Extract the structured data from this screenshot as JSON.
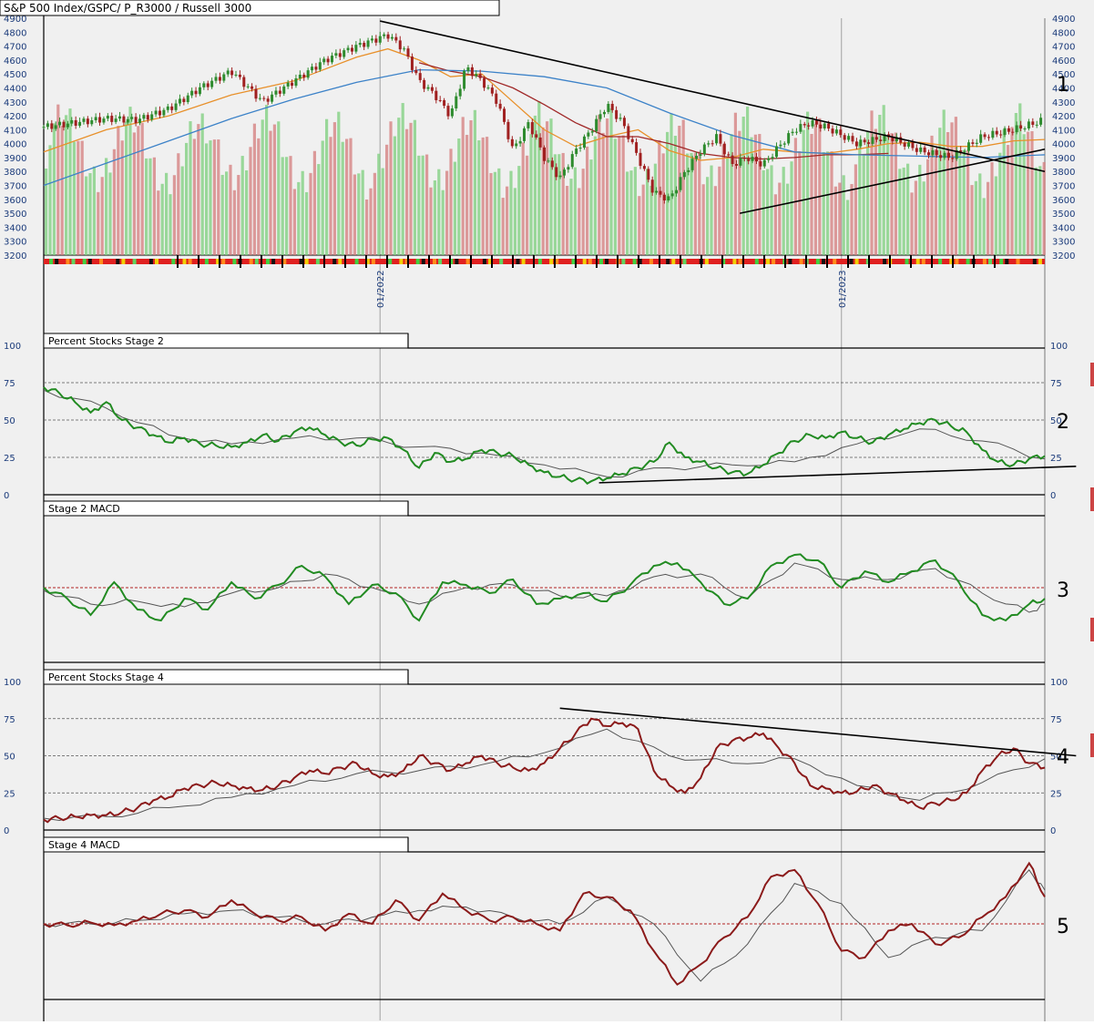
{
  "chart_data": [
    {
      "type": "candlestick",
      "title": "S&P 500 Index/GSPC/ P_R3000 / Russell 3000",
      "panel_number": "1",
      "ylim": [
        3200,
        4900
      ],
      "yticks": [
        3200,
        3300,
        3400,
        3500,
        3600,
        3700,
        3800,
        3900,
        4000,
        4100,
        4200,
        4300,
        4400,
        4500,
        4600,
        4700,
        4800,
        4900
      ],
      "date_labels": [
        "01/2022",
        "01/2023"
      ],
      "x_range_weeks": [
        0,
        128
      ],
      "series": [
        {
          "name": "",
          "kind": "close",
          "color": "#2e8b2e",
          "x": [
            0,
            4,
            8,
            12,
            16,
            20,
            24,
            28,
            32,
            36,
            40,
            44,
            46,
            48,
            50,
            52,
            54,
            56,
            58,
            60,
            62,
            64,
            66,
            68,
            70,
            72,
            74,
            76,
            78,
            80,
            82,
            84,
            86,
            88,
            90,
            92,
            94,
            96,
            98,
            100,
            104,
            108,
            112,
            116,
            120,
            124,
            128
          ],
          "values": [
            4120,
            4150,
            4180,
            4170,
            4250,
            4400,
            4520,
            4300,
            4450,
            4600,
            4700,
            4780,
            4680,
            4450,
            4350,
            4200,
            4550,
            4450,
            4300,
            3950,
            4150,
            3900,
            3750,
            3950,
            4100,
            4280,
            4150,
            3900,
            3650,
            3600,
            3800,
            3950,
            4050,
            3850,
            3900,
            3850,
            3980,
            4100,
            4150,
            4120,
            4000,
            4050,
            3950,
            3900,
            4050,
            4100,
            4170
          ]
        },
        {
          "name": "",
          "kind": "ma50",
          "color": "#e8902a",
          "x": [
            0,
            8,
            16,
            24,
            32,
            40,
            44,
            48,
            52,
            56,
            60,
            64,
            68,
            72,
            76,
            80,
            84,
            88,
            92,
            96,
            100,
            104,
            108,
            112,
            116,
            120,
            124,
            128
          ],
          "values": [
            3940,
            4100,
            4200,
            4350,
            4450,
            4620,
            4680,
            4600,
            4480,
            4500,
            4300,
            4100,
            3980,
            4050,
            4100,
            3950,
            3880,
            3900,
            3960,
            3940,
            3930,
            3960,
            4000,
            4010,
            3980,
            3980,
            4020,
            4030
          ]
        },
        {
          "name": "",
          "kind": "ma150",
          "color": "#a02828",
          "x": [
            48,
            52,
            56,
            60,
            64,
            68,
            72,
            76,
            80,
            84,
            88,
            92,
            96,
            100,
            104,
            108
          ],
          "values": [
            4580,
            4520,
            4480,
            4400,
            4280,
            4150,
            4050,
            4050,
            4000,
            3930,
            3900,
            3890,
            3900,
            3920,
            3920,
            3930
          ]
        },
        {
          "name": "",
          "kind": "ma200",
          "color": "#3c82c8",
          "x": [
            0,
            8,
            16,
            24,
            32,
            40,
            48,
            56,
            64,
            72,
            80,
            88,
            96,
            104,
            112,
            120,
            128
          ],
          "values": [
            3700,
            3860,
            4020,
            4180,
            4320,
            4440,
            4530,
            4520,
            4480,
            4400,
            4220,
            4060,
            3940,
            3920,
            3910,
            3900,
            3920
          ]
        }
      ],
      "trendlines": [
        {
          "x1": 43,
          "y1": 4880,
          "x2": 128,
          "y2": 3800
        },
        {
          "x1": 89,
          "y1": 3500,
          "x2": 128,
          "y2": 3960
        }
      ],
      "volume_note": "volume bars (green/red) overlaid in lower area",
      "indicator_strip_colors": [
        "#e02020",
        "#40d040",
        "#101010",
        "#f0d000",
        "#ff8c1a",
        "#5fd35f"
      ]
    },
    {
      "type": "line",
      "title": "Percent Stocks Stage 2",
      "panel_number": "2",
      "ylim": [
        0,
        100
      ],
      "yticks": [
        0,
        25,
        50,
        75,
        100
      ],
      "x_range_weeks": [
        0,
        128
      ],
      "series": [
        {
          "name": "",
          "color": "#228b22",
          "x": [
            0,
            2,
            4,
            6,
            8,
            10,
            12,
            14,
            16,
            18,
            20,
            22,
            24,
            26,
            28,
            30,
            32,
            34,
            36,
            38,
            40,
            42,
            44,
            46,
            48,
            50,
            52,
            54,
            56,
            58,
            60,
            62,
            64,
            66,
            68,
            70,
            72,
            74,
            76,
            78,
            80,
            82,
            84,
            86,
            88,
            90,
            92,
            94,
            96,
            98,
            100,
            102,
            104,
            106,
            108,
            110,
            112,
            114,
            116,
            118,
            120,
            122,
            124,
            126,
            128
          ],
          "values": [
            72,
            68,
            62,
            55,
            62,
            50,
            45,
            40,
            35,
            38,
            34,
            33,
            32,
            35,
            40,
            36,
            42,
            45,
            40,
            35,
            33,
            37,
            38,
            30,
            18,
            28,
            22,
            24,
            30,
            28,
            26,
            20,
            15,
            12,
            10,
            9,
            11,
            14,
            18,
            22,
            35,
            25,
            22,
            18,
            15,
            14,
            20,
            28,
            36,
            40,
            38,
            42,
            38,
            35,
            40,
            44,
            48,
            50,
            46,
            42,
            30,
            22,
            20,
            24,
            26
          ]
        },
        {
          "name": "",
          "color": "#555555",
          "x": [
            0,
            8,
            16,
            24,
            32,
            40,
            48,
            56,
            64,
            72,
            80,
            88,
            96,
            104,
            112,
            120,
            128
          ],
          "values": [
            70,
            58,
            40,
            34,
            38,
            38,
            32,
            28,
            20,
            12,
            18,
            20,
            22,
            34,
            44,
            36,
            24
          ]
        }
      ],
      "trendlines": [
        {
          "x1": 71,
          "y1": 8,
          "x2": 132,
          "y2": 19
        }
      ]
    },
    {
      "type": "line",
      "title": "Stage 2 MACD",
      "panel_number": "3",
      "ylim": [
        -100,
        100
      ],
      "zero_line": true,
      "x_range_weeks": [
        0,
        128
      ],
      "series": [
        {
          "name": "",
          "color": "#228b22",
          "x": [
            0,
            3,
            6,
            9,
            12,
            15,
            18,
            21,
            24,
            27,
            30,
            33,
            36,
            39,
            42,
            45,
            48,
            51,
            54,
            57,
            60,
            63,
            66,
            69,
            72,
            75,
            78,
            81,
            84,
            87,
            90,
            93,
            96,
            99,
            102,
            105,
            108,
            111,
            114,
            117,
            120,
            123,
            126,
            128
          ],
          "values": [
            0,
            -20,
            -50,
            10,
            -40,
            -60,
            -20,
            -40,
            10,
            -20,
            5,
            40,
            20,
            -30,
            5,
            -10,
            -60,
            10,
            5,
            -10,
            15,
            -30,
            -20,
            -10,
            -25,
            5,
            40,
            45,
            10,
            -30,
            -20,
            40,
            60,
            50,
            0,
            30,
            10,
            30,
            50,
            10,
            -50,
            -60,
            -30,
            -20
          ]
        },
        {
          "name": "",
          "color": "#555555",
          "x": [
            0,
            6,
            12,
            18,
            24,
            30,
            36,
            42,
            48,
            54,
            60,
            66,
            72,
            78,
            84,
            90,
            96,
            102,
            108,
            114,
            120,
            126,
            128
          ],
          "values": [
            -5,
            -30,
            -25,
            -35,
            -10,
            0,
            25,
            0,
            -30,
            0,
            5,
            -15,
            -15,
            20,
            25,
            -20,
            45,
            15,
            15,
            35,
            -10,
            -45,
            -30
          ]
        }
      ]
    },
    {
      "type": "line",
      "title": "Percent Stocks Stage 4",
      "panel_number": "4",
      "ylim": [
        0,
        100
      ],
      "yticks": [
        0,
        25,
        50,
        75,
        100
      ],
      "x_range_weeks": [
        0,
        128
      ],
      "series": [
        {
          "name": "",
          "color": "#8b1a1a",
          "x": [
            0,
            2,
            4,
            6,
            8,
            10,
            12,
            14,
            16,
            18,
            20,
            22,
            24,
            26,
            28,
            30,
            32,
            34,
            36,
            38,
            40,
            42,
            44,
            46,
            48,
            50,
            52,
            54,
            56,
            58,
            60,
            62,
            64,
            66,
            68,
            70,
            72,
            74,
            76,
            78,
            80,
            82,
            84,
            86,
            88,
            90,
            92,
            94,
            96,
            98,
            100,
            102,
            104,
            106,
            108,
            110,
            112,
            114,
            116,
            118,
            120,
            122,
            124,
            126,
            128
          ],
          "values": [
            7,
            8,
            9,
            10,
            10,
            12,
            15,
            20,
            22,
            28,
            30,
            32,
            30,
            28,
            27,
            30,
            35,
            40,
            38,
            42,
            45,
            38,
            36,
            40,
            50,
            45,
            40,
            45,
            50,
            45,
            42,
            40,
            45,
            55,
            65,
            75,
            70,
            72,
            68,
            40,
            30,
            25,
            35,
            55,
            60,
            62,
            65,
            55,
            45,
            30,
            28,
            25,
            26,
            30,
            25,
            20,
            15,
            18,
            20,
            25,
            40,
            50,
            55,
            45,
            42
          ]
        },
        {
          "name": "",
          "color": "#555555",
          "x": [
            0,
            8,
            16,
            24,
            32,
            40,
            48,
            56,
            64,
            72,
            80,
            88,
            96,
            104,
            112,
            120,
            128
          ],
          "values": [
            8,
            9,
            15,
            22,
            30,
            38,
            40,
            44,
            52,
            68,
            50,
            45,
            48,
            30,
            20,
            32,
            48
          ]
        }
      ],
      "trendlines": [
        {
          "x1": 66,
          "y1": 82,
          "x2": 132,
          "y2": 50
        }
      ]
    },
    {
      "type": "line",
      "title": "Stage 4 MACD",
      "panel_number": "5",
      "ylim": [
        -100,
        100
      ],
      "zero_line": true,
      "x_range_weeks": [
        0,
        128
      ],
      "series": [
        {
          "name": "",
          "color": "#8b1a1a",
          "x": [
            0,
            3,
            6,
            9,
            12,
            15,
            18,
            21,
            24,
            27,
            30,
            33,
            36,
            39,
            42,
            45,
            48,
            51,
            54,
            57,
            60,
            63,
            66,
            69,
            72,
            75,
            78,
            81,
            84,
            87,
            90,
            93,
            96,
            99,
            102,
            105,
            108,
            111,
            114,
            117,
            120,
            123,
            126,
            128
          ],
          "values": [
            0,
            -2,
            2,
            -2,
            5,
            15,
            20,
            10,
            35,
            15,
            5,
            10,
            -10,
            15,
            0,
            35,
            5,
            45,
            20,
            5,
            10,
            0,
            -10,
            45,
            40,
            20,
            -40,
            -90,
            -60,
            -20,
            10,
            70,
            80,
            30,
            -40,
            -50,
            -10,
            0,
            -30,
            -20,
            10,
            40,
            90,
            40
          ]
        },
        {
          "name": "",
          "color": "#555555",
          "x": [
            0,
            6,
            12,
            18,
            24,
            30,
            36,
            42,
            48,
            54,
            60,
            66,
            72,
            78,
            84,
            90,
            96,
            102,
            108,
            114,
            120,
            126,
            128
          ],
          "values": [
            0,
            0,
            5,
            15,
            20,
            10,
            0,
            10,
            20,
            25,
            10,
            0,
            40,
            0,
            -85,
            -30,
            60,
            30,
            -50,
            -20,
            -10,
            80,
            50
          ]
        }
      ]
    }
  ],
  "colors": {
    "background": "#f0f0f0",
    "frame": "#000000",
    "axis_text": "#1a3a7a",
    "grid_dash": "#555555",
    "zero_dash": "#b22222",
    "date_grid": "#a0a0a0",
    "up_candle": "#2e8b2e",
    "down_candle": "#a02020",
    "vol_up": "#7ccf7c",
    "vol_down": "#d47c7c"
  }
}
